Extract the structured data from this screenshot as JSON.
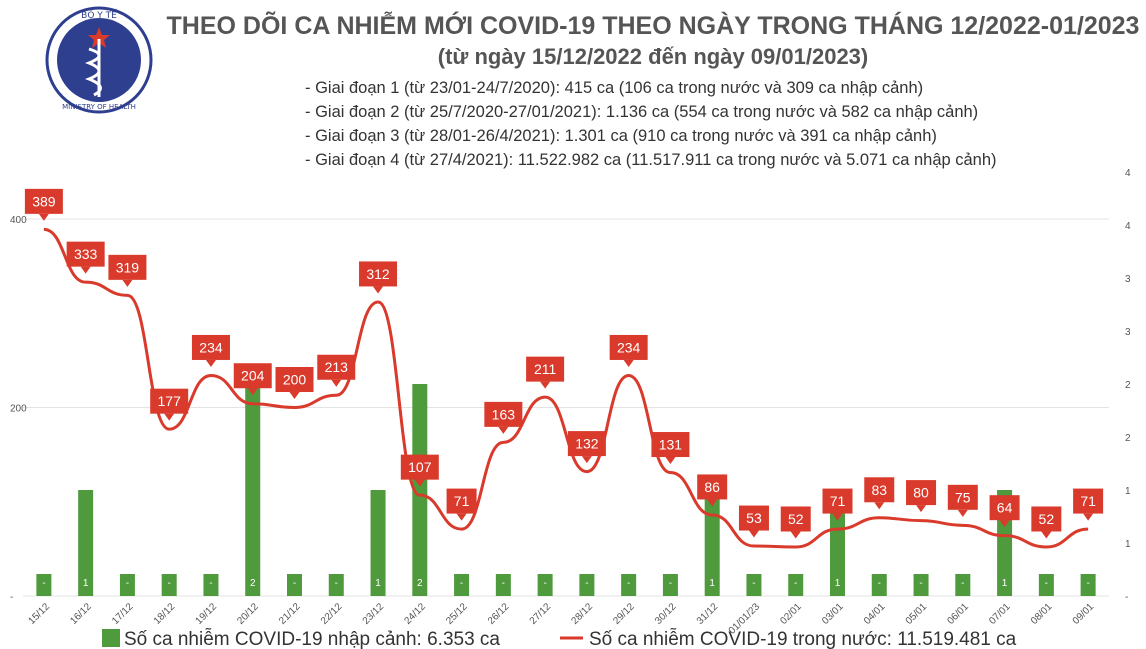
{
  "header": {
    "logo_text_top": "BỘ Y TẾ",
    "logo_text_bottom": "MINISTRY OF HEALTH",
    "title": "THEO DÕI CA NHIỄM MỚI COVID-19 THEO NGÀY TRONG THÁNG 12/2022-01/2023",
    "subtitle": "(từ ngày 15/12/2022 đến ngày 09/01/2023)"
  },
  "stages": [
    "- Giai đoạn 1 (từ 23/01-24/7/2020): 415 ca (106 ca trong nước và 309 ca nhập cảnh)",
    "- Giai đoạn 2 (từ 25/7/2020-27/01/2021): 1.136 ca (554 ca trong nước và 582 ca nhập cảnh)",
    "- Giai đoạn 3 (từ 28/01-26/4/2021): 1.301 ca (910 ca trong nước và 391 ca nhập cảnh)",
    "- Giai đoạn 4 (từ 27/4/2021): 11.522.982 ca (11.517.911 ca trong nước và 5.071 ca nhập cảnh)"
  ],
  "chart_data": {
    "type": "bar",
    "categories": [
      "15/12",
      "16/12",
      "17/12",
      "18/12",
      "19/12",
      "20/12",
      "21/12",
      "22/12",
      "23/12",
      "24/12",
      "25/12",
      "26/12",
      "27/12",
      "28/12",
      "29/12",
      "30/12",
      "31/12",
      "01/01/23",
      "02/01",
      "03/01",
      "04/01",
      "05/01",
      "06/01",
      "07/01",
      "08/01",
      "09/01"
    ],
    "series": [
      {
        "name": "Số ca nhiễm COVID-19 nhập cảnh: 6.353 ca",
        "type": "bar",
        "axis": "right",
        "color": "#4e9a3c",
        "values": [
          0,
          1,
          0,
          0,
          0,
          2,
          0,
          0,
          1,
          2,
          0,
          0,
          0,
          0,
          0,
          0,
          1,
          0,
          0,
          1,
          0,
          0,
          0,
          1,
          0,
          0
        ],
        "labels": [
          "-",
          "1",
          "-",
          "-",
          "-",
          "2",
          "-",
          "-",
          "1",
          "2",
          "-",
          "-",
          "-",
          "-",
          "-",
          "-",
          "1",
          "-",
          "-",
          "1",
          "-",
          "-",
          "-",
          "1",
          "-",
          "-"
        ]
      },
      {
        "name": "Số ca nhiễm COVID-19 trong nước: 11.519.481 ca",
        "type": "line",
        "axis": "left",
        "color": "#d93a2b",
        "values": [
          389,
          333,
          319,
          177,
          234,
          204,
          200,
          213,
          312,
          107,
          71,
          163,
          211,
          132,
          234,
          131,
          86,
          53,
          52,
          71,
          83,
          80,
          75,
          64,
          52,
          71
        ]
      }
    ],
    "y_left": {
      "ticks": [
        "400",
        "200",
        "-"
      ],
      "values": [
        400,
        200,
        0
      ]
    },
    "y_right": {
      "ticks": [
        "4",
        "4",
        "3",
        "3",
        "2",
        "2",
        "1",
        "1",
        "-"
      ],
      "values": [
        4,
        3.5,
        3,
        2.5,
        2,
        1.5,
        1,
        0.5,
        0
      ]
    },
    "grid": true,
    "legend": "bottom"
  }
}
